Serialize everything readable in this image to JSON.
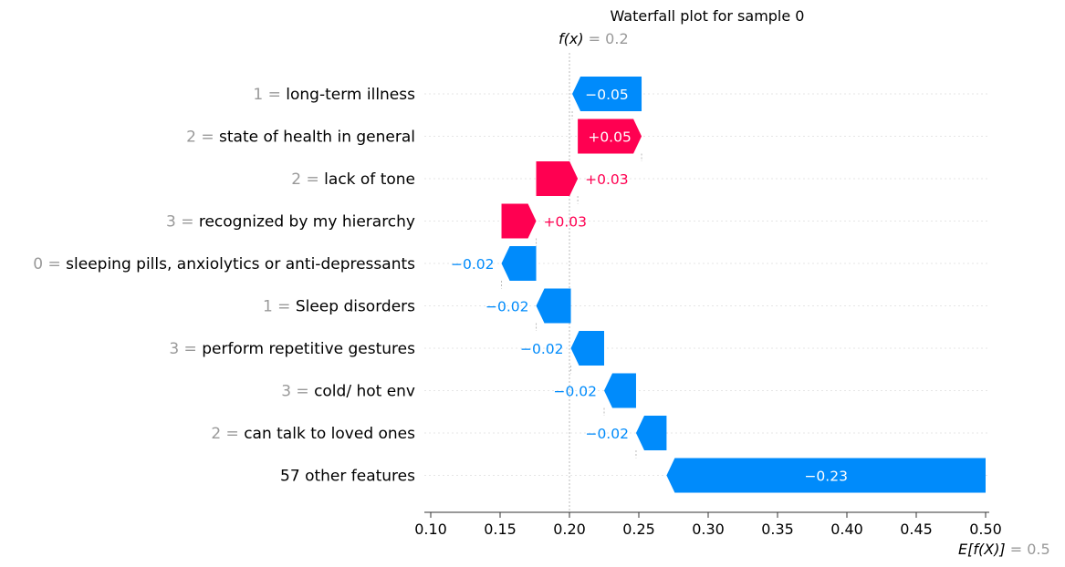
{
  "chart_data": {
    "type": "waterfall",
    "title": "Waterfall plot for sample 0",
    "fx": {
      "label": "f(x)",
      "value_text": "0.2",
      "value": 0.2
    },
    "base": {
      "label": "E[f(X)]",
      "value_text": "0.5",
      "value": 0.5
    },
    "xlim": [
      0.1,
      0.5
    ],
    "xticks": [
      "0.10",
      "0.15",
      "0.20",
      "0.25",
      "0.30",
      "0.35",
      "0.40",
      "0.45",
      "0.50"
    ],
    "xtick_values": [
      0.1,
      0.15,
      0.2,
      0.25,
      0.3,
      0.35,
      0.4,
      0.45,
      0.5
    ],
    "colors": {
      "positive": "#ff0051",
      "negative": "#008bfb"
    },
    "features": [
      {
        "value": "1",
        "name": "long-term illness",
        "label": "−0.05",
        "start": 0.252,
        "end": 0.202,
        "label_inside": true
      },
      {
        "value": "2",
        "name": "state of health in general",
        "label": "+0.05",
        "start": 0.206,
        "end": 0.252,
        "label_inside": true
      },
      {
        "value": "2",
        "name": "lack of tone",
        "label": "+0.03",
        "start": 0.176,
        "end": 0.206,
        "label_inside": false
      },
      {
        "value": "3",
        "name": "recognized by my hierarchy",
        "label": "+0.03",
        "start": 0.151,
        "end": 0.176,
        "label_inside": false
      },
      {
        "value": "0",
        "name": "sleeping pills, anxiolytics or anti-depressants",
        "label": "−0.02",
        "start": 0.176,
        "end": 0.151,
        "label_inside": false
      },
      {
        "value": "1",
        "name": "Sleep disorders",
        "label": "−0.02",
        "start": 0.201,
        "end": 0.176,
        "label_inside": false
      },
      {
        "value": "3",
        "name": "perform repetitive gestures",
        "label": "−0.02",
        "start": 0.225,
        "end": 0.201,
        "label_inside": false
      },
      {
        "value": "3",
        "name": "cold/ hot env",
        "label": "−0.02",
        "start": 0.248,
        "end": 0.225,
        "label_inside": false
      },
      {
        "value": "2",
        "name": "can talk to loved ones",
        "label": "−0.02",
        "start": 0.27,
        "end": 0.248,
        "label_inside": false
      },
      {
        "value": "",
        "name": "57 other features",
        "label": "−0.23",
        "start": 0.5,
        "end": 0.27,
        "label_inside": true
      }
    ]
  }
}
